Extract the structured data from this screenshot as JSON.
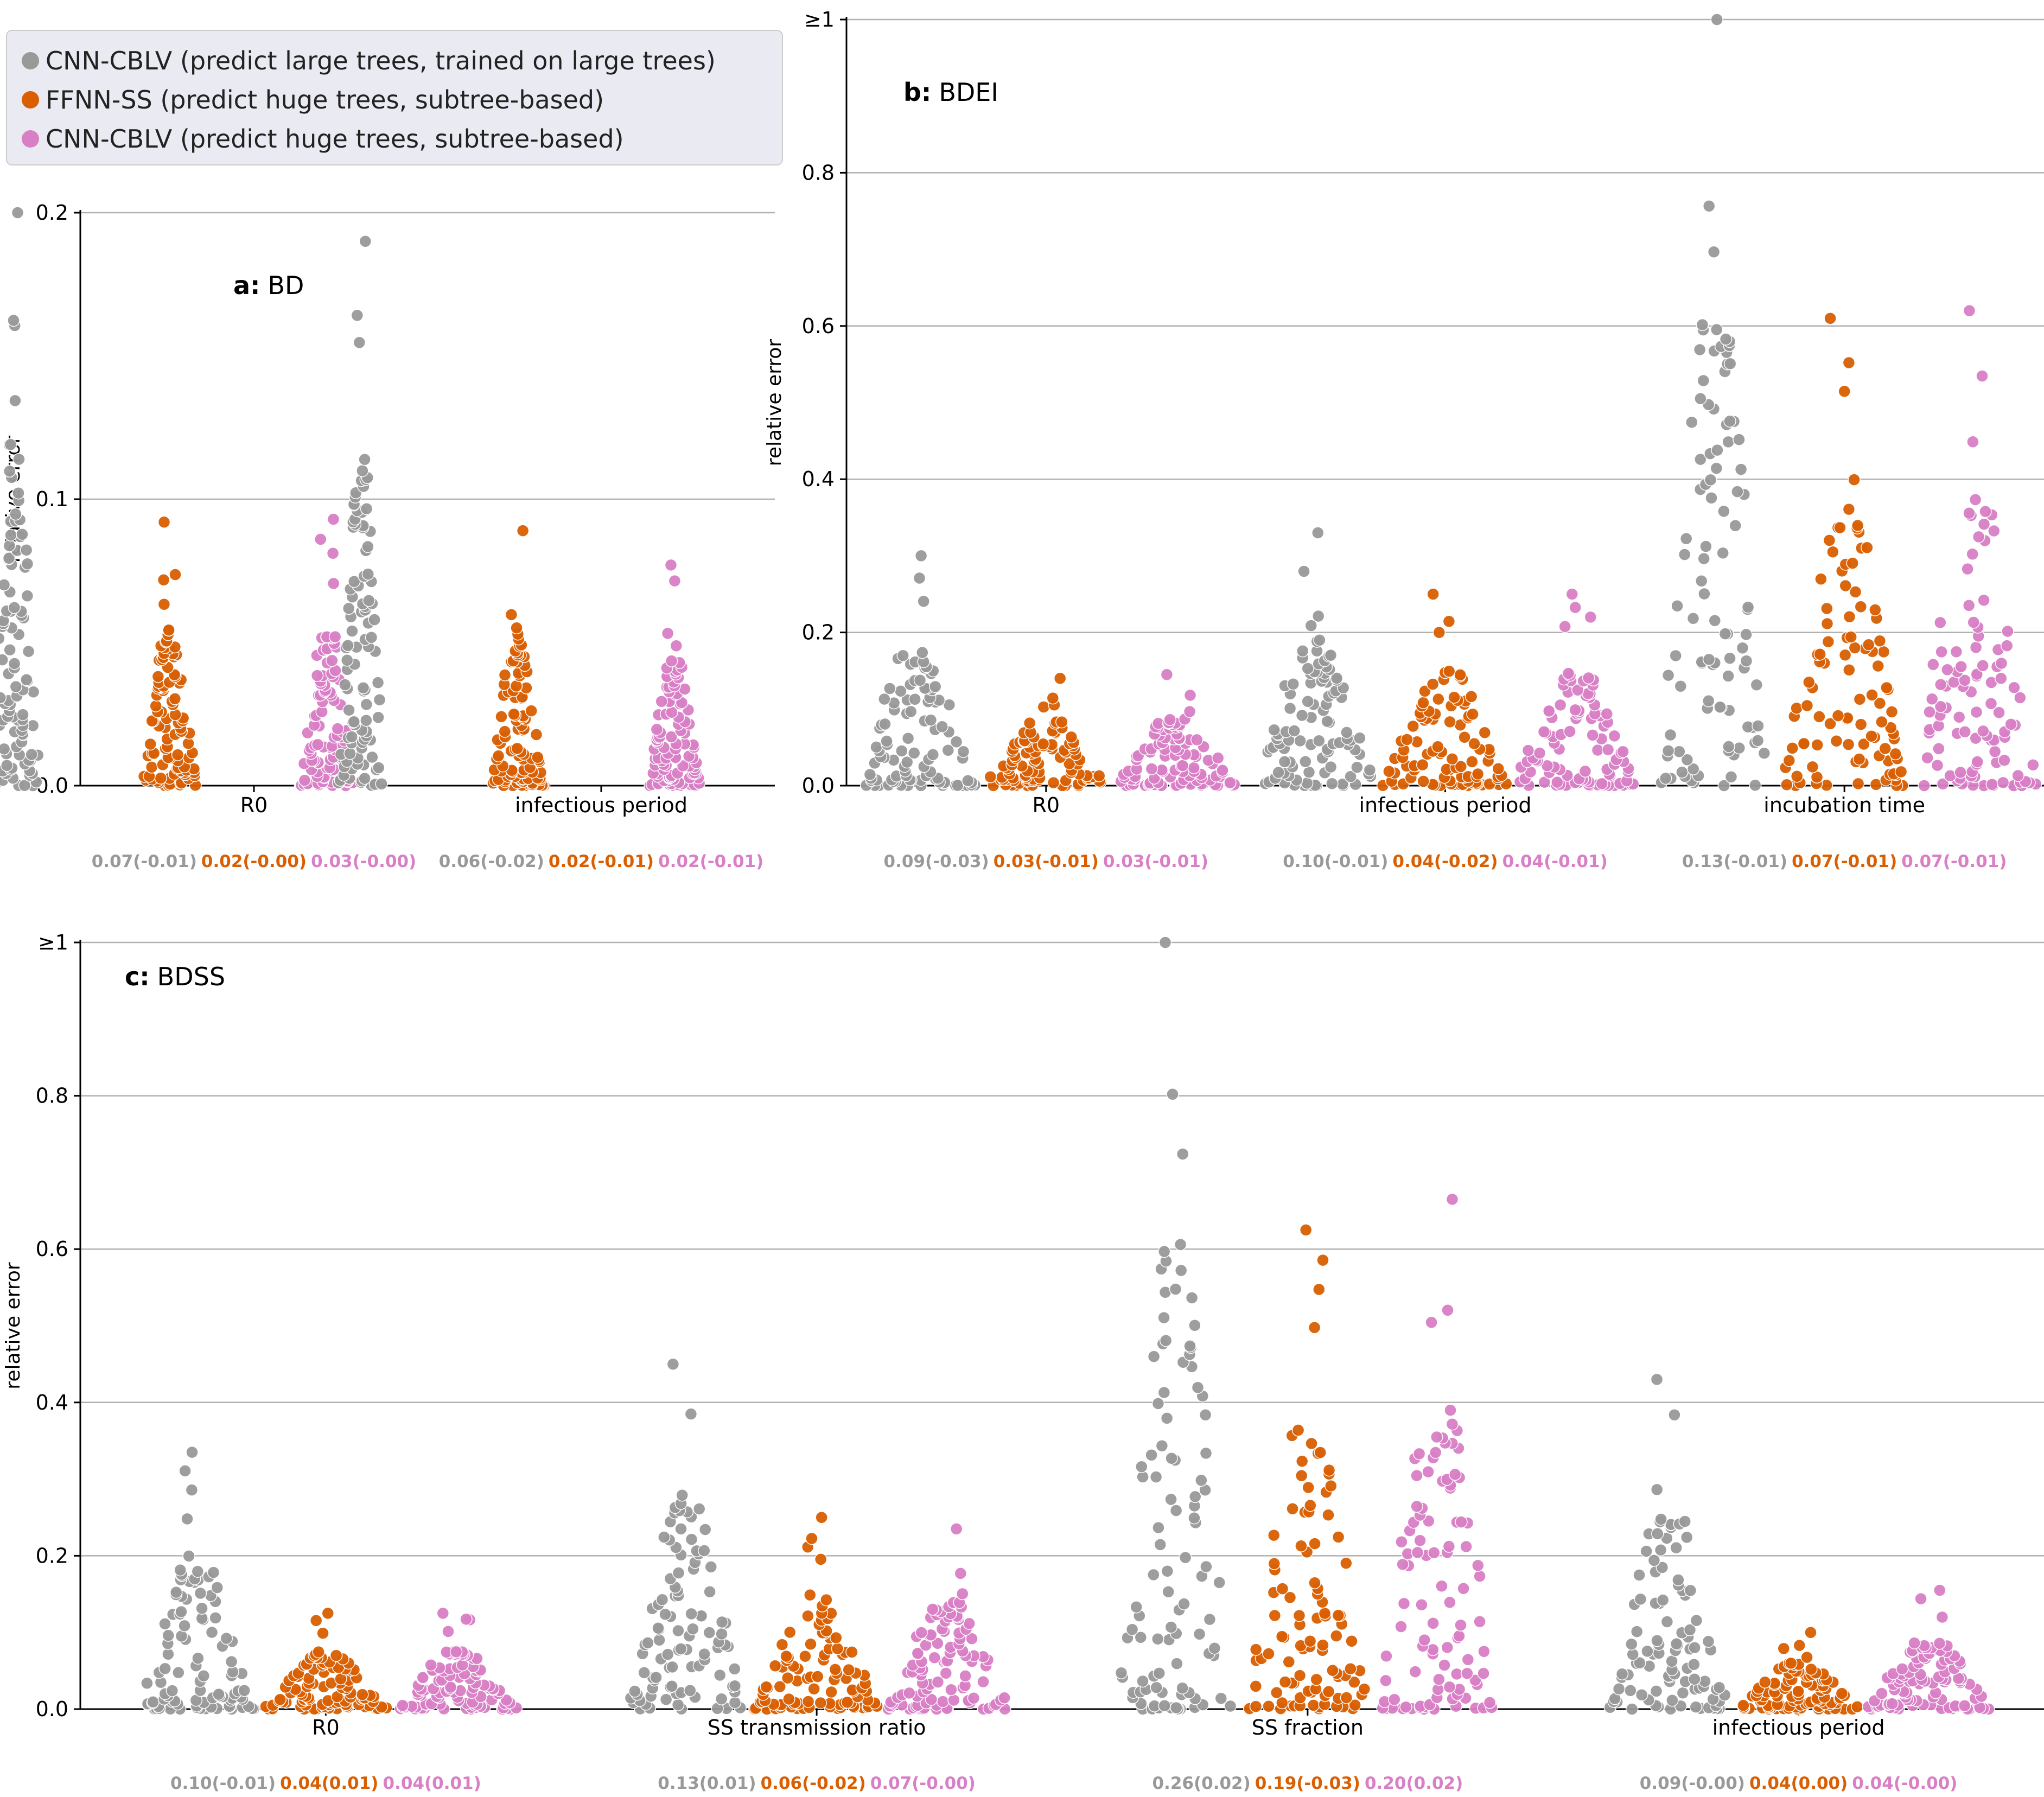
{
  "colors": {
    "gray": "#999999",
    "orange": "#d95f02",
    "pink": "#d97fc6",
    "grid": "#b0b0b0",
    "legend_bg": "#eaeaf2"
  },
  "legend": {
    "entries": [
      {
        "label": "CNN-CBLV (predict large trees, trained on large trees)",
        "color": "#999999"
      },
      {
        "label": "FFNN-SS (predict huge trees, subtree-based)",
        "color": "#d95f02"
      },
      {
        "label": "CNN-CBLV (predict huge trees, subtree-based)",
        "color": "#d97fc6"
      }
    ]
  },
  "chart_data": [
    {
      "type": "scatter",
      "panel_letter": "a:",
      "panel_name": "BD",
      "ylabel": "relative error",
      "ylim": [
        0,
        0.2
      ],
      "yticks": [
        0,
        0.1,
        0.2
      ],
      "ytick_labels": [
        "0.0",
        "0.1",
        "0.2"
      ],
      "grid": true,
      "categories": [
        "R0",
        "infectious period"
      ],
      "series": [
        {
          "max": [
            0.2,
            0.19
          ],
          "stats": [
            "0.07(-0.01)",
            "0.06(-0.02)"
          ]
        },
        {
          "max": [
            0.092,
            0.089
          ],
          "stats": [
            "0.02(-0.00)",
            "0.02(-0.01)"
          ]
        },
        {
          "max": [
            0.093,
            0.077
          ],
          "stats": [
            "0.03(-0.00)",
            "0.02(-0.01)"
          ]
        }
      ]
    },
    {
      "type": "scatter",
      "panel_letter": "b:",
      "panel_name": "BDEI",
      "ylabel": "relative error",
      "ylim": [
        0,
        1
      ],
      "yticks": [
        0,
        0.2,
        0.4,
        0.6,
        0.8,
        1
      ],
      "ytick_labels": [
        "0.0",
        "0.2",
        "0.4",
        "0.6",
        "0.8",
        "≥1"
      ],
      "grid": true,
      "categories": [
        "R0",
        "infectious period",
        "incubation time"
      ],
      "series": [
        {
          "max": [
            0.3,
            0.33,
            1.0
          ],
          "stats": [
            "0.09(-0.03)",
            "0.10(-0.01)",
            "0.13(-0.01)"
          ]
        },
        {
          "max": [
            0.14,
            0.25,
            0.61
          ],
          "stats": [
            "0.03(-0.01)",
            "0.04(-0.02)",
            "0.07(-0.01)"
          ]
        },
        {
          "max": [
            0.145,
            0.25,
            0.62
          ],
          "stats": [
            "0.03(-0.01)",
            "0.04(-0.01)",
            "0.07(-0.01)"
          ]
        }
      ]
    },
    {
      "type": "scatter",
      "panel_letter": "c:",
      "panel_name": "BDSS",
      "ylabel": "relative error",
      "ylim": [
        0,
        1
      ],
      "yticks": [
        0,
        0.2,
        0.4,
        0.6,
        0.8,
        1
      ],
      "ytick_labels": [
        "0.0",
        "0.2",
        "0.4",
        "0.6",
        "0.8",
        "≥1"
      ],
      "grid": true,
      "categories": [
        "R0",
        "SS transmission ratio",
        "SS fraction",
        "infectious period"
      ],
      "series": [
        {
          "max": [
            0.335,
            0.45,
            1.0,
            0.43
          ],
          "stats": [
            "0.10(-0.01)",
            "0.13(0.01)",
            "0.26(0.02)",
            "0.09(-0.00)"
          ]
        },
        {
          "max": [
            0.125,
            0.25,
            0.625,
            0.1
          ],
          "stats": [
            "0.04(0.01)",
            "0.06(-0.02)",
            "0.19(-0.03)",
            "0.04(0.00)"
          ]
        },
        {
          "max": [
            0.125,
            0.235,
            0.665,
            0.155
          ],
          "stats": [
            "0.04(0.01)",
            "0.07(-0.00)",
            "0.20(0.02)",
            "0.04(-0.00)"
          ]
        }
      ]
    }
  ]
}
